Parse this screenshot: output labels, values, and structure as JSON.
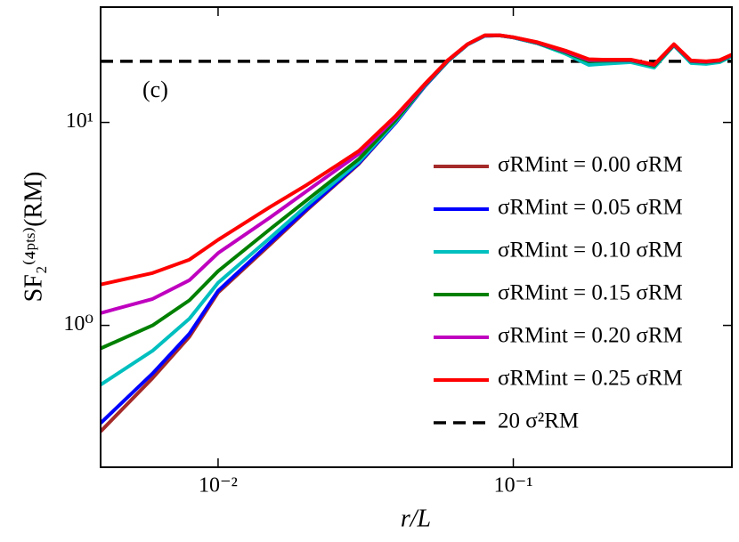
{
  "chart_data": {
    "type": "line",
    "xlabel": "r/L",
    "ylabel": "SF₂⁽⁴ᵖᵗˢ⁾(RM)",
    "annotation": "(c)",
    "xscale": "log",
    "yscale": "log",
    "xlim": [
      0.004,
      0.55
    ],
    "ylim": [
      0.2,
      37
    ],
    "xticks": [
      {
        "value": 0.01,
        "label": "10⁻²"
      },
      {
        "value": 0.1,
        "label": "10⁻¹"
      }
    ],
    "yticks": [
      {
        "value": 1,
        "label": "10⁰"
      },
      {
        "value": 10,
        "label": "10¹"
      }
    ],
    "legend": "right",
    "x": [
      0.004,
      0.006,
      0.008,
      0.01,
      0.015,
      0.02,
      0.03,
      0.04,
      0.05,
      0.06,
      0.07,
      0.08,
      0.09,
      0.1,
      0.12,
      0.15,
      0.18,
      0.2,
      0.25,
      0.3,
      0.35,
      0.4,
      0.45,
      0.5,
      0.55
    ],
    "series": [
      {
        "name": "σRMint = 0.00 σRM",
        "color": "#a52a2a",
        "values": [
          0.3,
          0.55,
          0.88,
          1.45,
          2.5,
          3.7,
          6.25,
          10.0,
          15.0,
          20.0,
          24.2,
          26.7,
          26.8,
          26.2,
          24.6,
          22.0,
          19.6,
          19.8,
          20.0,
          18.8,
          24.0,
          19.8,
          19.6,
          20.0,
          21.2
        ]
      },
      {
        "name": "σRMint = 0.05 σRM",
        "color": "#0000ff",
        "values": [
          0.33,
          0.58,
          0.91,
          1.48,
          2.55,
          3.75,
          6.3,
          10.0,
          15.0,
          20.0,
          24.2,
          26.7,
          26.8,
          26.2,
          24.6,
          22.0,
          19.6,
          19.8,
          20.0,
          18.8,
          24.0,
          19.8,
          19.6,
          20.0,
          21.2
        ]
      },
      {
        "name": "σRMint = 0.10 σRM",
        "color": "#00bfbf",
        "values": [
          0.51,
          0.75,
          1.08,
          1.62,
          2.7,
          3.9,
          6.4,
          10.1,
          15.1,
          20.0,
          24.2,
          26.7,
          26.8,
          26.2,
          24.6,
          21.8,
          19.2,
          19.4,
          19.8,
          18.6,
          24.0,
          19.6,
          19.4,
          19.8,
          21.2
        ]
      },
      {
        "name": "σRMint = 0.15 σRM",
        "color": "#008000",
        "values": [
          0.77,
          1.0,
          1.33,
          1.85,
          2.98,
          4.15,
          6.6,
          10.3,
          15.2,
          20.1,
          24.3,
          26.8,
          26.8,
          26.3,
          24.7,
          22.2,
          20.0,
          20.1,
          20.2,
          19.0,
          24.1,
          20.0,
          19.8,
          20.1,
          21.4
        ]
      },
      {
        "name": "σRMint = 0.20 σRM",
        "color": "#bf00bf",
        "values": [
          1.15,
          1.35,
          1.67,
          2.27,
          3.4,
          4.6,
          7.0,
          10.6,
          15.3,
          20.2,
          24.3,
          26.8,
          26.9,
          26.3,
          24.8,
          22.4,
          20.3,
          20.3,
          20.3,
          19.2,
          24.2,
          20.1,
          19.9,
          20.2,
          21.5
        ]
      },
      {
        "name": "σRMint = 0.25 σRM",
        "color": "#ff0000",
        "values": [
          1.59,
          1.81,
          2.11,
          2.64,
          3.83,
          4.93,
          7.24,
          10.8,
          15.4,
          20.3,
          24.3,
          26.9,
          26.9,
          26.3,
          24.9,
          22.6,
          20.5,
          20.4,
          20.4,
          19.3,
          24.3,
          20.2,
          20.0,
          20.3,
          21.6
        ]
      }
    ],
    "hline": {
      "name": "20 σ²RM",
      "value": 20,
      "color": "#000000"
    }
  }
}
